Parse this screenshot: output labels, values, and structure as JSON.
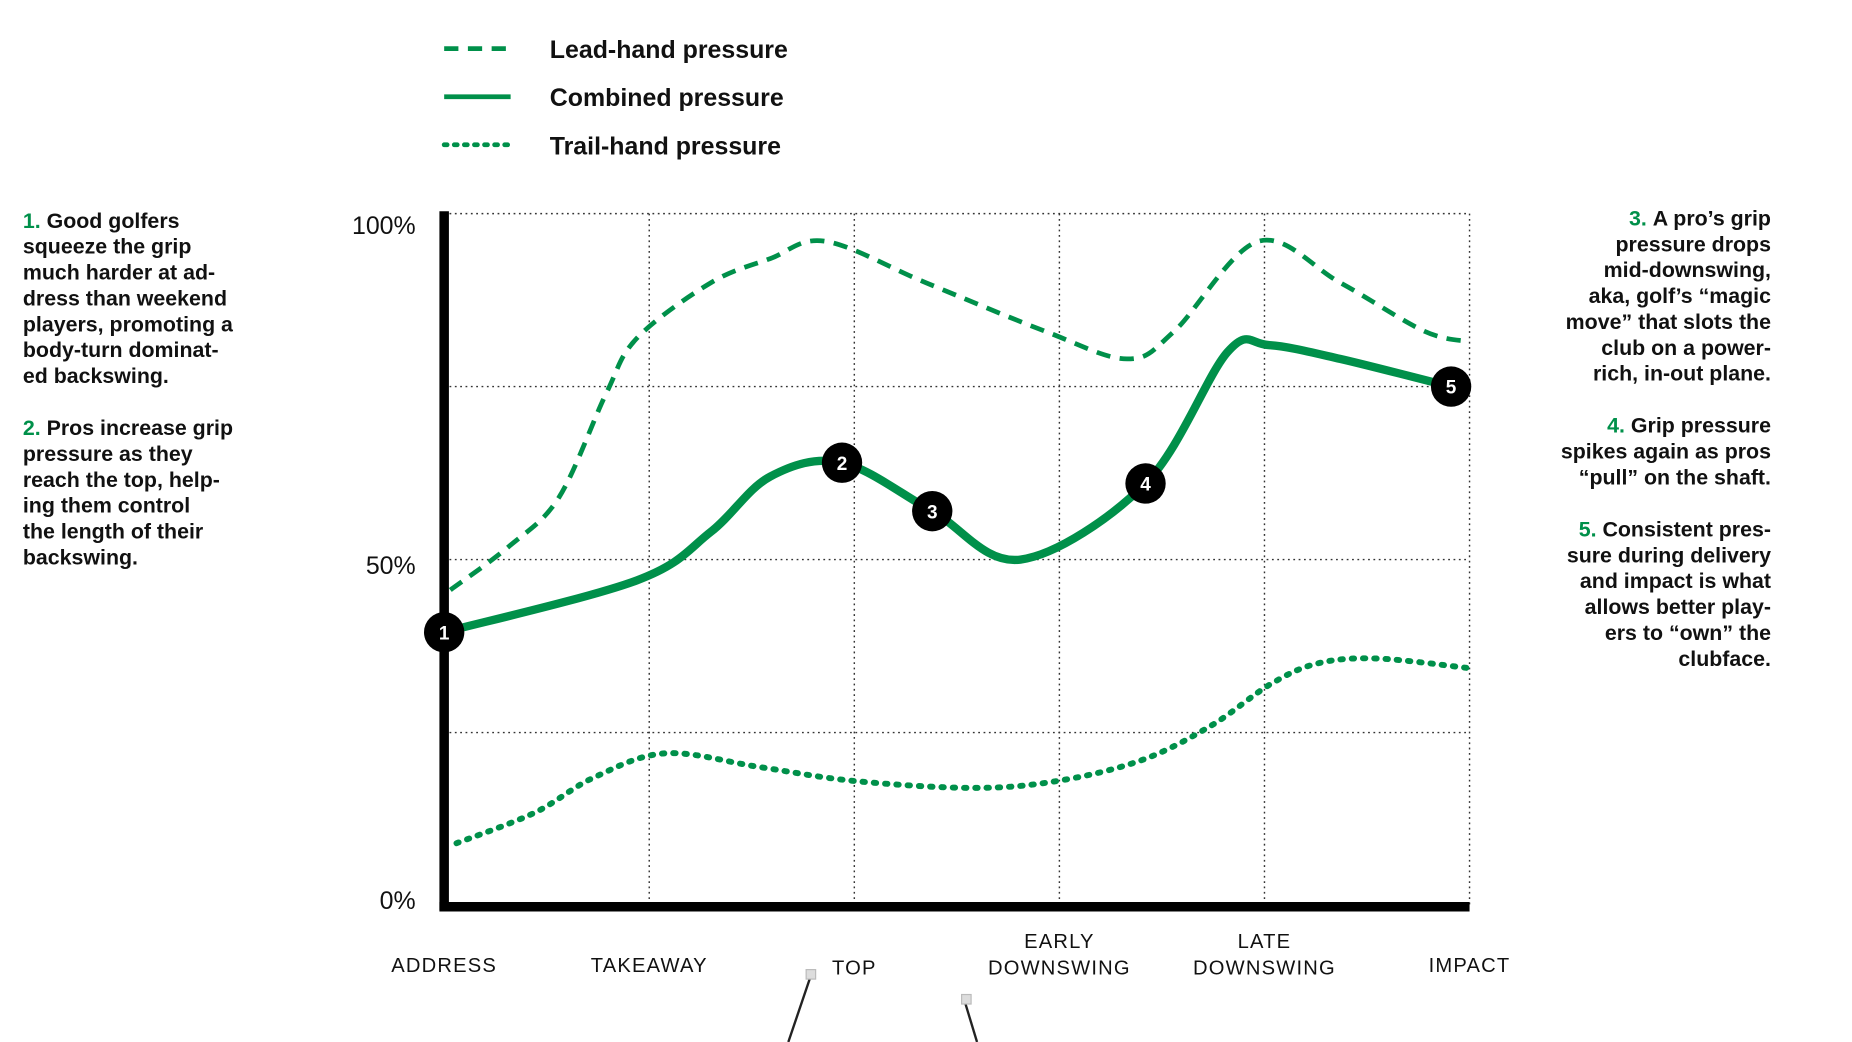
{
  "colors": {
    "series": "#00904a",
    "axis": "#000000",
    "marker": "#000000"
  },
  "legend": [
    {
      "label": "Lead-hand pressure",
      "style": "dashed"
    },
    {
      "label": "Combined pressure",
      "style": "solid"
    },
    {
      "label": "Trail-hand pressure",
      "style": "dotted"
    }
  ],
  "annotations_left": [
    {
      "num": "1.",
      "lines": [
        "Good golfers",
        "squeeze the grip",
        "much harder at ad-",
        "dress than weekend",
        "players, promoting a",
        "body-turn dominat-",
        "ed backswing."
      ]
    },
    {
      "num": "2.",
      "lines": [
        "Pros increase grip",
        "pressure as they",
        "reach the top, help-",
        "ing them control",
        "the length of their",
        "backswing."
      ]
    }
  ],
  "annotations_right": [
    {
      "num": "3.",
      "lines": [
        "A pro’s grip",
        "pressure drops",
        "mid-downswing,",
        "aka, golf’s “magic",
        "move” that slots the",
        "club on a power-",
        "rich, in-out plane."
      ]
    },
    {
      "num": "4.",
      "lines": [
        "Grip pressure",
        "spikes again as pros",
        "“pull” on the shaft."
      ]
    },
    {
      "num": "5.",
      "lines": [
        "Consistent pres-",
        "sure during delivery",
        "and impact is what",
        "allows better play-",
        "ers to “own” the",
        "clubface."
      ]
    }
  ],
  "chart_data": {
    "type": "line",
    "title": "",
    "xlabel": "",
    "ylabel": "",
    "categories": [
      [
        "ADDRESS"
      ],
      [
        "TAKEAWAY"
      ],
      [
        "TOP"
      ],
      [
        "EARLY",
        "DOWNSWING"
      ],
      [
        "LATE",
        "DOWNSWING"
      ],
      [
        "IMPACT"
      ]
    ],
    "xlim": [
      0,
      5
    ],
    "ylim": [
      0,
      100
    ],
    "yticks": [
      {
        "value": 100,
        "label": "100%"
      },
      {
        "value": 50,
        "label": "50%"
      },
      {
        "value": 0,
        "label": "0%"
      }
    ],
    "grid": true,
    "legend_position": "top",
    "series": [
      {
        "name": "Lead-hand pressure",
        "style": "dashed",
        "x": [
          0.03,
          0.32,
          0.56,
          0.79,
          0.94,
          1.3,
          1.59,
          1.86,
          2.35,
          2.93,
          3.33,
          3.56,
          3.97,
          4.37,
          4.78,
          5.0
        ],
        "y": [
          45.6,
          52,
          59,
          74,
          82,
          90,
          93.5,
          96,
          90,
          83,
          79,
          83,
          96,
          90,
          83,
          81.5
        ]
      },
      {
        "name": "Combined pressure",
        "style": "solid",
        "x": [
          0,
          0.94,
          1.3,
          1.59,
          1.94,
          2.38,
          2.81,
          3.42,
          3.82,
          4.02,
          4.37,
          4.91,
          5.0
        ],
        "y": [
          39.5,
          47,
          54,
          62,
          64,
          57,
          50,
          61,
          80,
          81,
          79,
          75,
          74.5
        ]
      },
      {
        "name": "Trail-hand pressure",
        "style": "dotted",
        "x": [
          0.06,
          0.44,
          0.73,
          1.08,
          1.54,
          2.0,
          2.58,
          2.99,
          3.4,
          3.74,
          4.03,
          4.26,
          4.55,
          5.0
        ],
        "y": [
          9,
          13.4,
          18.5,
          22,
          20,
          18,
          17,
          18,
          21,
          26,
          32,
          35,
          35.7,
          34.3
        ]
      }
    ],
    "markers": [
      {
        "label": "1",
        "x": 0,
        "y": 39.5
      },
      {
        "label": "2",
        "x": 1.94,
        "y": 64
      },
      {
        "label": "3",
        "x": 2.38,
        "y": 57
      },
      {
        "label": "4",
        "x": 3.42,
        "y": 61
      },
      {
        "label": "5",
        "x": 4.91,
        "y": 75
      }
    ]
  }
}
